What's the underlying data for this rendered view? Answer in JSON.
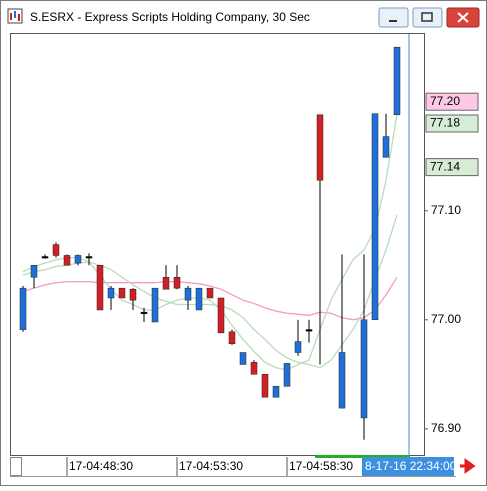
{
  "window_title": "S.ESRX - Express Scripts Holding Company, 30 Sec",
  "chart_data": {
    "type": "candlestick",
    "categories": [
      null,
      null,
      null,
      null,
      "17-04:48:30",
      null,
      null,
      null,
      null,
      null,
      null,
      null,
      null,
      null,
      "17-04:53:30",
      null,
      null,
      null,
      null,
      null,
      null,
      null,
      null,
      null,
      "17-04:58:30",
      null,
      null,
      null,
      null,
      null,
      null,
      null,
      null,
      null,
      null
    ],
    "open": [
      76.991,
      77.039,
      77.058,
      77.069,
      77.059,
      77.052,
      77.058,
      77.05,
      77.02,
      77.029,
      77.028,
      77.007,
      76.998,
      77.039,
      77.039,
      77.018,
      77.009,
      77.029,
      77.02,
      76.989,
      76.959,
      76.961,
      76.95,
      76.929,
      76.939,
      76.97,
      76.991,
      77.188,
      null,
      76.919,
      null,
      76.91,
      77.0,
      77.149,
      77.188
    ],
    "high": [
      77.031,
      77.05,
      77.06,
      77.071,
      77.06,
      77.06,
      77.061,
      77.05,
      77.031,
      77.029,
      77.029,
      77.011,
      77.029,
      77.05,
      77.05,
      77.031,
      77.029,
      77.029,
      77.02,
      76.991,
      76.97,
      76.963,
      76.95,
      76.939,
      76.96,
      77.0,
      77.0,
      77.188,
      null,
      77.06,
      null,
      77.06,
      77.189,
      77.189,
      77.25
    ],
    "low": [
      76.989,
      77.029,
      77.056,
      77.057,
      77.05,
      77.05,
      77.05,
      77.009,
      77.009,
      77.02,
      77.009,
      76.998,
      76.998,
      77.028,
      77.028,
      77.009,
      77.009,
      77.02,
      76.988,
      76.977,
      76.959,
      76.95,
      76.929,
      76.929,
      76.939,
      76.967,
      76.979,
      76.959,
      null,
      76.919,
      null,
      76.89,
      77.0,
      77.149,
      77.188
    ],
    "close": [
      77.029,
      77.05,
      77.058,
      77.059,
      77.05,
      77.059,
      77.058,
      77.009,
      77.029,
      77.02,
      77.018,
      77.007,
      77.029,
      77.028,
      77.029,
      77.029,
      77.029,
      77.02,
      76.988,
      76.978,
      76.97,
      76.95,
      76.929,
      76.939,
      76.96,
      76.98,
      76.991,
      77.128,
      null,
      76.97,
      null,
      77.0,
      77.189,
      77.168,
      77.25
    ],
    "up_color": "#1f6fd8",
    "down_color": "#d11f26",
    "lines": [
      {
        "color": "#f29ac8",
        "values": [
          77.026,
          77.029,
          77.032,
          77.034,
          77.035,
          77.035,
          77.035,
          77.034,
          77.034,
          77.034,
          77.034,
          77.034,
          77.034,
          77.035,
          77.035,
          77.034,
          77.033,
          77.031,
          77.028,
          77.023,
          77.018,
          77.015,
          77.011,
          77.008,
          77.006,
          77.005,
          77.004,
          77.007,
          77.006,
          77.002,
          77.0,
          77.002,
          77.009,
          77.023,
          77.039
        ]
      },
      {
        "color": "#b9dcb9",
        "values": [
          77.044,
          77.049,
          77.052,
          77.055,
          77.057,
          77.057,
          77.053,
          77.041,
          77.028,
          77.018,
          77.014,
          77.009,
          77.009,
          77.014,
          77.018,
          77.02,
          77.02,
          77.018,
          77.009,
          76.995,
          76.982,
          76.971,
          76.961,
          76.956,
          76.954,
          76.959,
          76.963,
          76.991,
          77.018,
          77.037,
          77.055,
          77.064,
          77.083,
          77.128,
          77.188
        ]
      },
      {
        "color": "#b9dcb9",
        "values": [
          77.041,
          77.044,
          77.046,
          77.049,
          77.05,
          77.052,
          77.053,
          77.05,
          77.046,
          77.039,
          77.032,
          77.026,
          77.02,
          77.017,
          77.014,
          77.014,
          77.014,
          77.014,
          77.013,
          77.009,
          77.002,
          76.991,
          76.982,
          76.972,
          76.965,
          76.961,
          76.959,
          76.956,
          76.963,
          76.977,
          76.991,
          77.009,
          77.037,
          77.064,
          77.096
        ]
      }
    ],
    "ylim": [
      76.876,
      77.263
    ],
    "yticks": [
      {
        "value": 76.9,
        "label": "76.90"
      },
      {
        "value": 77.0,
        "label": "77.00"
      },
      {
        "value": 77.1,
        "label": "77.10"
      }
    ],
    "price_markers": [
      {
        "value": 77.2,
        "label": "77.20",
        "color": "#ffc8e4"
      },
      {
        "value": 77.18,
        "label": "77.18",
        "color": "#d7ecd7"
      },
      {
        "value": 77.14,
        "label": "77.14",
        "color": "#d7ecd7"
      }
    ],
    "cursor_label": "8-17-16 22:34:00"
  }
}
